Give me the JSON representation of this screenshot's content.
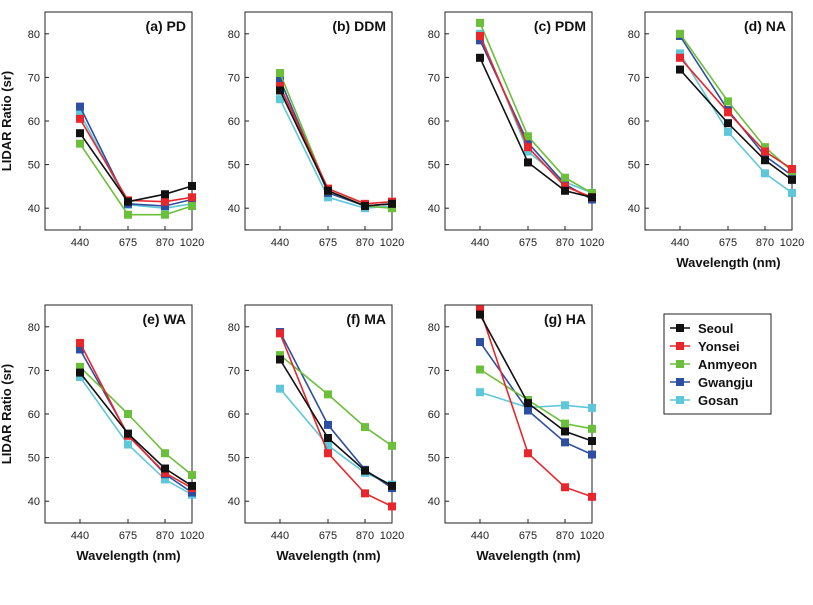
{
  "chart_data": {
    "type": "line",
    "x": [
      440,
      675,
      870,
      1020
    ],
    "x_tick_labels": [
      "440",
      "675",
      "870",
      "1020"
    ],
    "y_ticks": [
      "80",
      "70",
      "60",
      "50",
      "40"
    ],
    "ylim": [
      35,
      85
    ],
    "xlabel": "Wavelength (nm)",
    "ylabel": "LIDAR Ratio (sr)",
    "legend_placement": "bottom-right",
    "colors": {
      "Seoul": "#111111",
      "Yonsei": "#e8262c",
      "Anmyeon": "#6cbf3a",
      "Gwangju": "#2d4fa1",
      "Gosan": "#5ec8d8"
    },
    "panels": [
      {
        "title": "(a) PD",
        "series": [
          {
            "name": "Seoul",
            "values": [
              57.2,
              41.5,
              43.2,
              45.1
            ]
          },
          {
            "name": "Yonsei",
            "values": [
              60.5,
              41.8,
              41.5,
              42.5
            ]
          },
          {
            "name": "Anmyeon",
            "values": [
              54.8,
              38.5,
              38.5,
              40.5
            ]
          },
          {
            "name": "Gwangju",
            "values": [
              63.3,
              41.0,
              40.5,
              42.0
            ]
          },
          {
            "name": "Gosan",
            "values": [
              61.8,
              40.8,
              40.0,
              41.0
            ]
          }
        ]
      },
      {
        "title": "(b) DDM",
        "series": [
          {
            "name": "Seoul",
            "values": [
              67.0,
              44.0,
              40.5,
              41.0
            ]
          },
          {
            "name": "Yonsei",
            "values": [
              68.0,
              44.5,
              41.0,
              41.5
            ]
          },
          {
            "name": "Anmyeon",
            "values": [
              71.0,
              44.0,
              40.5,
              40.0
            ]
          },
          {
            "name": "Gwangju",
            "values": [
              69.5,
              43.5,
              40.5,
              41.0
            ]
          },
          {
            "name": "Gosan",
            "values": [
              65.0,
              42.5,
              40.0,
              40.5
            ]
          }
        ]
      },
      {
        "title": "(c) PDM",
        "series": [
          {
            "name": "Seoul",
            "values": [
              74.5,
              50.5,
              44.0,
              42.5
            ]
          },
          {
            "name": "Yonsei",
            "values": [
              79.5,
              54.0,
              45.0,
              42.5
            ]
          },
          {
            "name": "Anmyeon",
            "values": [
              82.5,
              56.5,
              47.0,
              43.5
            ]
          },
          {
            "name": "Gwangju",
            "values": [
              78.5,
              55.0,
              45.5,
              42.0
            ]
          },
          {
            "name": "Gosan",
            "values": [
              80.0,
              53.0,
              46.0,
              43.5
            ]
          }
        ]
      },
      {
        "title": "(d) NA",
        "series": [
          {
            "name": "Seoul",
            "values": [
              71.8,
              59.5,
              51.0,
              46.5
            ]
          },
          {
            "name": "Yonsei",
            "values": [
              74.5,
              62.0,
              53.0,
              49.0
            ]
          },
          {
            "name": "Anmyeon",
            "values": [
              80.0,
              64.5,
              54.0,
              48.5
            ]
          },
          {
            "name": "Gwangju",
            "values": [
              79.5,
              62.5,
              52.0,
              47.5
            ]
          },
          {
            "name": "Gosan",
            "values": [
              75.5,
              57.5,
              48.0,
              43.5
            ]
          }
        ]
      },
      {
        "title": "(e) WA",
        "series": [
          {
            "name": "Seoul",
            "values": [
              69.5,
              55.5,
              47.5,
              43.5
            ]
          },
          {
            "name": "Yonsei",
            "values": [
              76.3,
              55.0,
              46.5,
              43.0
            ]
          },
          {
            "name": "Anmyeon",
            "values": [
              70.8,
              60.0,
              51.0,
              46.0
            ]
          },
          {
            "name": "Gwangju",
            "values": [
              74.8,
              55.3,
              46.2,
              42.0
            ]
          },
          {
            "name": "Gosan",
            "values": [
              68.5,
              53.0,
              45.0,
              41.5
            ]
          }
        ]
      },
      {
        "title": "(f) MA",
        "series": [
          {
            "name": "Seoul",
            "values": [
              72.5,
              54.5,
              47.0,
              43.5
            ]
          },
          {
            "name": "Yonsei",
            "values": [
              78.5,
              51.0,
              41.8,
              38.8
            ]
          },
          {
            "name": "Anmyeon",
            "values": [
              73.5,
              64.5,
              57.0,
              52.7
            ]
          },
          {
            "name": "Gwangju",
            "values": [
              78.8,
              57.5,
              47.2,
              43.0
            ]
          },
          {
            "name": "Gosan",
            "values": [
              65.8,
              52.8,
              46.5,
              43.8
            ]
          }
        ]
      },
      {
        "title": "(g) HA",
        "series": [
          {
            "name": "Seoul",
            "values": [
              82.8,
              62.5,
              56.0,
              53.8
            ]
          },
          {
            "name": "Yonsei",
            "values": [
              84.0,
              51.0,
              43.2,
              41.0
            ]
          },
          {
            "name": "Anmyeon",
            "values": [
              70.2,
              63.2,
              57.8,
              56.6
            ]
          },
          {
            "name": "Gwangju",
            "values": [
              76.5,
              60.8,
              53.5,
              50.7
            ]
          },
          {
            "name": "Gosan",
            "values": [
              65.0,
              61.5,
              62.0,
              61.4
            ]
          }
        ]
      }
    ]
  }
}
